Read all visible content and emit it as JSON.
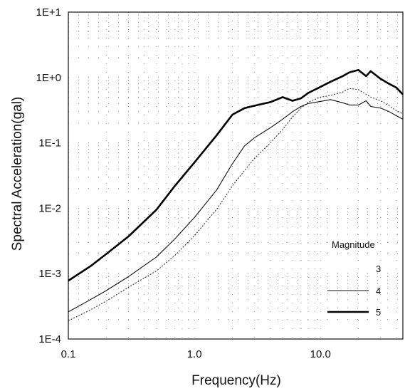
{
  "chart_data": {
    "type": "line",
    "title": "",
    "xlabel": "Frequency(Hz)",
    "ylabel": "Spectral Acceleration(gal)",
    "xscale": "log",
    "yscale": "log",
    "xlim": [
      0.1,
      45
    ],
    "ylim": [
      0.0001,
      10
    ],
    "x_ticks": [
      {
        "value": 0.1,
        "label": "0.1"
      },
      {
        "value": 1,
        "label": "1.0"
      },
      {
        "value": 10,
        "label": "10.0"
      }
    ],
    "y_ticks": [
      {
        "value": 10,
        "label": "1E+1"
      },
      {
        "value": 1,
        "label": "1E+0"
      },
      {
        "value": 0.1,
        "label": "1E-1"
      },
      {
        "value": 0.01,
        "label": "1E-2"
      },
      {
        "value": 0.001,
        "label": "1E-3"
      },
      {
        "value": 0.0001,
        "label": "1E-4"
      }
    ],
    "grid": "dotted",
    "legend": {
      "title": "Magnitude",
      "placement": "bottom-right"
    },
    "series": [
      {
        "name": "3",
        "style": "dotted",
        "x": [
          0.1,
          0.15,
          0.2,
          0.3,
          0.5,
          0.7,
          1.0,
          1.5,
          2.0,
          2.5,
          3.0,
          4.0,
          5.0,
          6.0,
          7.0,
          8.0,
          10.0,
          12.0,
          15.0,
          17.0,
          20.0,
          25.0,
          30.0,
          35.0,
          40.0,
          45.0
        ],
        "y": [
          0.00019,
          0.00028,
          0.00038,
          0.00062,
          0.0011,
          0.0019,
          0.0038,
          0.0096,
          0.022,
          0.038,
          0.058,
          0.1,
          0.16,
          0.25,
          0.34,
          0.42,
          0.5,
          0.53,
          0.6,
          0.68,
          0.65,
          0.5,
          0.44,
          0.37,
          0.31,
          0.28
        ]
      },
      {
        "name": "4",
        "style": "thin",
        "x": [
          0.1,
          0.15,
          0.2,
          0.3,
          0.5,
          0.7,
          1.0,
          1.5,
          2.0,
          2.5,
          3.0,
          4.0,
          5.0,
          6.0,
          7.0,
          8.0,
          10.0,
          12.0,
          15.0,
          17.0,
          20.0,
          23.0,
          25.0,
          30.0,
          35.0,
          40.0,
          45.0
        ],
        "y": [
          0.00026,
          0.0004,
          0.00055,
          0.0009,
          0.0018,
          0.0034,
          0.0072,
          0.019,
          0.048,
          0.09,
          0.12,
          0.17,
          0.23,
          0.3,
          0.36,
          0.4,
          0.43,
          0.46,
          0.41,
          0.38,
          0.38,
          0.44,
          0.36,
          0.34,
          0.3,
          0.26,
          0.23
        ]
      },
      {
        "name": "5",
        "style": "thick",
        "x": [
          0.1,
          0.15,
          0.2,
          0.3,
          0.5,
          0.7,
          1.0,
          1.5,
          2.0,
          2.5,
          3.0,
          4.0,
          5.0,
          6.0,
          7.0,
          8.0,
          10.0,
          12.0,
          15.0,
          17.0,
          20.0,
          23.0,
          25.0,
          30.0,
          35.0,
          40.0,
          45.0
        ],
        "y": [
          0.00078,
          0.0013,
          0.002,
          0.0037,
          0.0095,
          0.022,
          0.05,
          0.13,
          0.27,
          0.34,
          0.37,
          0.42,
          0.5,
          0.44,
          0.48,
          0.58,
          0.72,
          0.86,
          1.05,
          1.2,
          1.3,
          1.05,
          1.25,
          0.95,
          0.8,
          0.7,
          0.55
        ]
      }
    ]
  }
}
